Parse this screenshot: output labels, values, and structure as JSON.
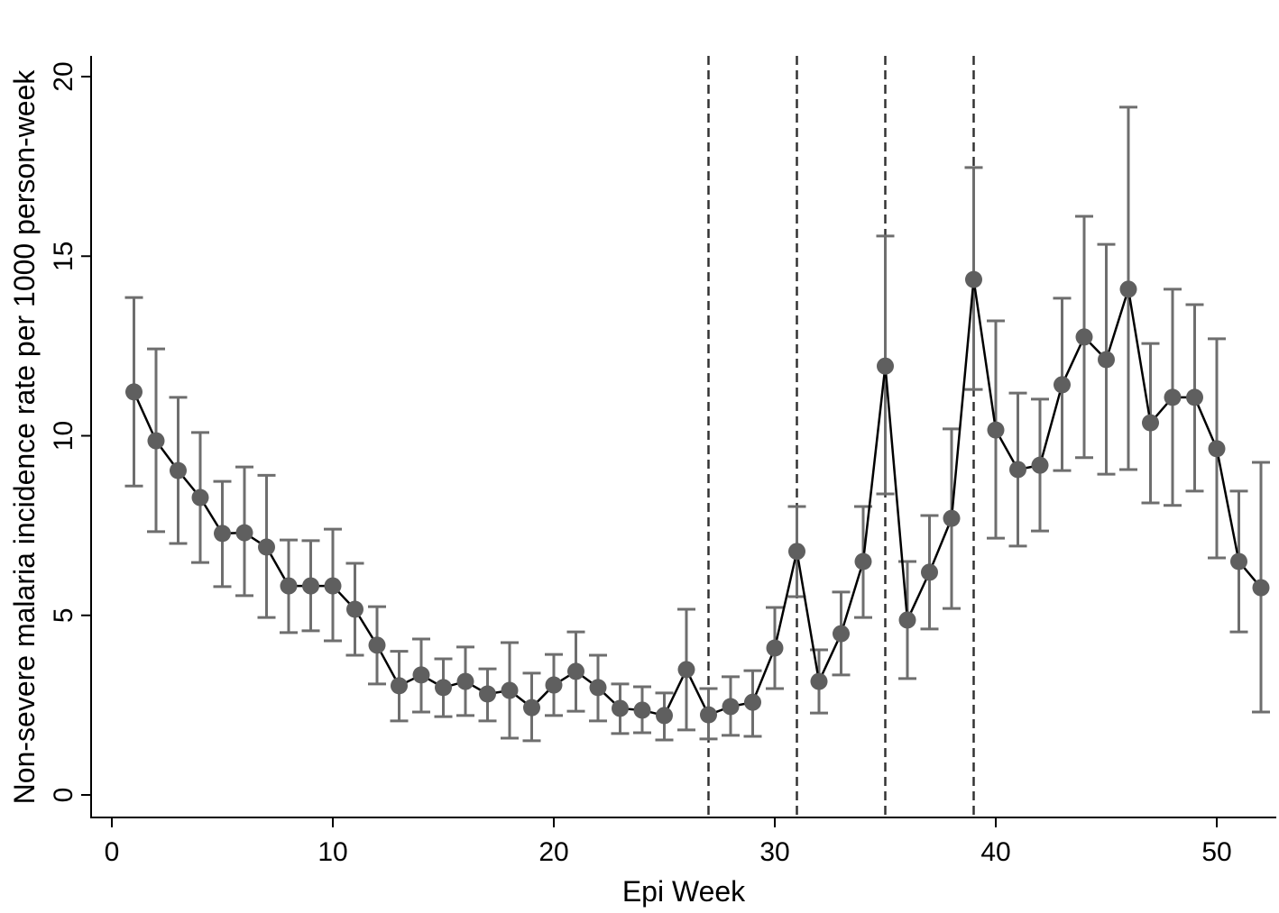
{
  "chart_data": {
    "type": "line",
    "title": "",
    "xlabel": "Epi Week",
    "ylabel": "Non-severe malaria incidence rate per 1000 person-week",
    "xlim": [
      0,
      52
    ],
    "ylim": [
      0,
      20
    ],
    "xticks": [
      0,
      10,
      20,
      30,
      40,
      50
    ],
    "yticks": [
      0,
      5,
      10,
      15,
      20
    ],
    "grid": false,
    "vertical_reference_lines": [
      27,
      31,
      35,
      39
    ],
    "colors": {
      "point": "#5f5f5f",
      "line": "#000000",
      "errorbar": "#6e6e6e",
      "refline": "#333333"
    },
    "series": [
      {
        "name": "Incidence rate",
        "x": [
          1,
          2,
          3,
          4,
          5,
          6,
          7,
          8,
          9,
          10,
          11,
          12,
          13,
          14,
          15,
          16,
          17,
          18,
          19,
          20,
          21,
          22,
          23,
          24,
          25,
          26,
          27,
          28,
          29,
          30,
          31,
          32,
          33,
          34,
          35,
          36,
          37,
          38,
          39,
          40,
          41,
          42,
          43,
          44,
          45,
          46,
          47,
          48,
          49,
          50,
          51,
          52
        ],
        "y": [
          11.22,
          9.86,
          9.03,
          8.28,
          7.28,
          7.3,
          6.9,
          5.82,
          5.82,
          5.82,
          5.17,
          4.17,
          3.04,
          3.34,
          2.99,
          3.16,
          2.81,
          2.91,
          2.43,
          3.06,
          3.44,
          2.99,
          2.41,
          2.36,
          2.21,
          3.49,
          2.23,
          2.46,
          2.58,
          4.09,
          6.78,
          3.16,
          4.49,
          6.5,
          11.94,
          4.87,
          6.2,
          7.7,
          14.35,
          10.16,
          9.06,
          9.18,
          11.42,
          12.75,
          12.12,
          14.08,
          10.36,
          11.07,
          11.07,
          9.64,
          6.5,
          5.77
        ],
        "upper": [
          13.85,
          12.42,
          11.07,
          10.09,
          8.73,
          9.13,
          8.9,
          7.1,
          7.08,
          7.4,
          6.45,
          5.24,
          4.0,
          4.34,
          3.79,
          4.12,
          3.51,
          4.24,
          3.39,
          3.91,
          4.54,
          3.89,
          3.09,
          3.01,
          2.84,
          5.17,
          2.96,
          3.29,
          3.46,
          5.22,
          8.03,
          4.04,
          5.65,
          8.03,
          15.56,
          6.5,
          7.78,
          10.19,
          17.47,
          13.2,
          11.19,
          11.02,
          13.83,
          16.11,
          15.33,
          19.15,
          12.57,
          14.08,
          13.65,
          12.7,
          8.46,
          9.26
        ],
        "lower": [
          8.6,
          7.33,
          7.0,
          6.47,
          5.8,
          5.55,
          4.94,
          4.52,
          4.57,
          4.29,
          3.89,
          3.09,
          2.06,
          2.31,
          2.18,
          2.21,
          2.06,
          1.58,
          1.51,
          2.21,
          2.33,
          2.06,
          1.71,
          1.73,
          1.53,
          1.81,
          1.56,
          1.66,
          1.63,
          2.96,
          5.52,
          2.28,
          3.34,
          4.94,
          8.38,
          3.24,
          4.62,
          5.19,
          11.29,
          7.15,
          6.93,
          7.35,
          9.03,
          9.39,
          8.93,
          9.06,
          8.13,
          8.06,
          8.46,
          6.6,
          4.54,
          2.31
        ]
      }
    ]
  }
}
